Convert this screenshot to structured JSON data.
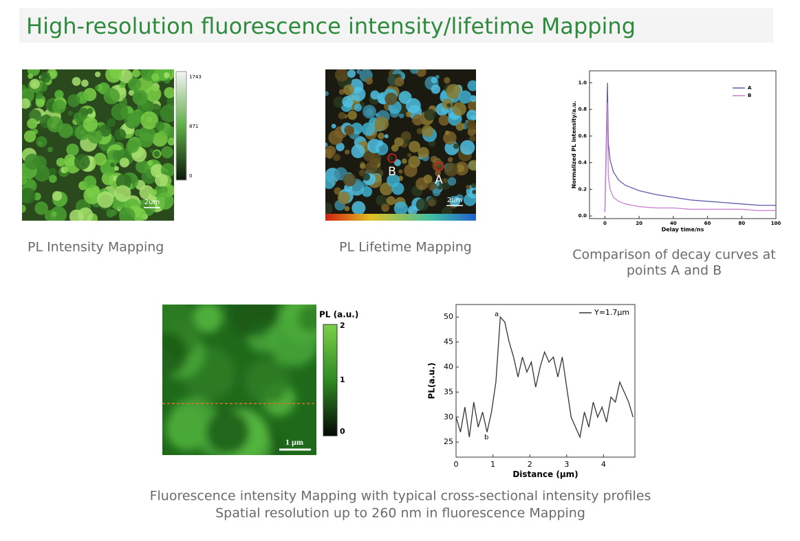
{
  "header": {
    "title": "High-resolution fluorescence intensity/lifetime Mapping"
  },
  "intensity_map": {
    "caption": "PL Intensity Mapping",
    "colorbar_labels": [
      "1743",
      "871",
      "0"
    ],
    "scale_bar": "2um"
  },
  "lifetime_map": {
    "caption": "PL Lifetime Mapping",
    "point_labels": [
      "A",
      "B"
    ],
    "scale_bar": "2um"
  },
  "decay_chart": {
    "type": "line",
    "caption": [
      "Comparison of decay curves at",
      "points A and B"
    ],
    "x_label": "Delay time/ns",
    "y_label": "Normalized PL intensity/a.u.",
    "x": [
      0,
      1.5,
      2,
      3,
      5,
      8,
      12,
      16,
      20,
      30,
      40,
      50,
      60,
      70,
      80,
      90,
      100
    ],
    "series": [
      {
        "name": "A",
        "color": "#5a5aa8",
        "values": [
          0.03,
          1.0,
          0.55,
          0.42,
          0.33,
          0.27,
          0.23,
          0.21,
          0.19,
          0.16,
          0.14,
          0.12,
          0.11,
          0.1,
          0.09,
          0.08,
          0.08
        ]
      },
      {
        "name": "B",
        "color": "#c77fd0",
        "values": [
          0.03,
          0.85,
          0.3,
          0.2,
          0.14,
          0.11,
          0.09,
          0.08,
          0.07,
          0.06,
          0.06,
          0.05,
          0.05,
          0.05,
          0.05,
          0.04,
          0.04
        ]
      }
    ],
    "xlim": [
      -9,
      100
    ],
    "ylim": [
      -0.02,
      1.09
    ],
    "xticks": [
      0,
      20,
      40,
      60,
      80,
      100
    ],
    "yticks": [
      {
        "value": 0,
        "label": "0.0"
      },
      0.2,
      0.4,
      0.6,
      0.8,
      {
        "value": 1,
        "label": "1.0"
      }
    ]
  },
  "fluorescence_map": {
    "colorbar_title": "PL (a.u.)",
    "colorbar_labels": [
      "2",
      "1",
      "0"
    ],
    "scale_bar": "1 µm"
  },
  "profile_chart": {
    "type": "line",
    "x_label": "Distance (µm)",
    "y_label": "PL(a.u.)",
    "annotations": [
      "a",
      "b"
    ],
    "x": [
      0,
      0.12,
      0.24,
      0.36,
      0.48,
      0.6,
      0.72,
      0.84,
      0.96,
      1.08,
      1.2,
      1.32,
      1.44,
      1.56,
      1.68,
      1.8,
      1.92,
      2.04,
      2.16,
      2.28,
      2.4,
      2.52,
      2.64,
      2.76,
      2.88,
      3.0,
      3.12,
      3.24,
      3.36,
      3.48,
      3.6,
      3.72,
      3.84,
      3.96,
      4.08,
      4.2,
      4.32,
      4.44,
      4.56,
      4.68,
      4.8
    ],
    "series": [
      {
        "name": "Y=1.7µm",
        "color": "#333333",
        "values": [
          30,
          27,
          32,
          26,
          33,
          28,
          31,
          27,
          31,
          37,
          50,
          49,
          45,
          42,
          38,
          42,
          39,
          41,
          36,
          40,
          43,
          41,
          42,
          38,
          42,
          36,
          30,
          28,
          26,
          31,
          28,
          33,
          30,
          32,
          29,
          34,
          33,
          37,
          35,
          33,
          30
        ]
      }
    ],
    "xlim": [
      0,
      4.85
    ],
    "ylim": [
      22,
      52.5
    ],
    "xticks": [
      0,
      1,
      2,
      3,
      4
    ],
    "yticks": [
      25,
      30,
      35,
      40,
      45,
      50
    ]
  },
  "footer": [
    "Fluorescence intensity Mapping with typical cross-sectional intensity profiles",
    "Spatial resolution up to 260 nm in fluorescence Mapping"
  ]
}
